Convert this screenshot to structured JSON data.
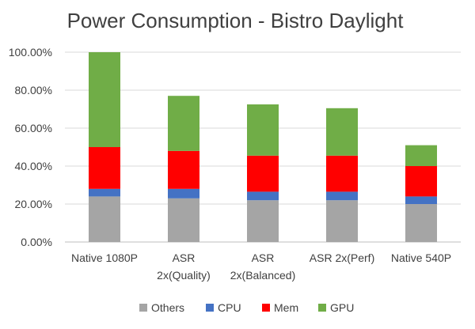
{
  "chart_data": {
    "type": "bar",
    "stacked": true,
    "title": "Power Consumption  - Bistro Daylight",
    "categories": [
      [
        "Native 1080P"
      ],
      [
        "ASR",
        "2x(Quality)"
      ],
      [
        "ASR",
        "2x(Balanced)"
      ],
      [
        "ASR 2x(Perf)"
      ],
      [
        "Native 540P"
      ]
    ],
    "series": [
      {
        "name": "Others",
        "color": "#A5A5A5",
        "values": [
          24.0,
          23.0,
          22.0,
          22.0,
          20.0
        ]
      },
      {
        "name": "CPU",
        "color": "#4472C4",
        "values": [
          4.0,
          5.0,
          4.5,
          4.5,
          4.0
        ]
      },
      {
        "name": "Mem",
        "color": "#FF0000",
        "values": [
          22.0,
          20.0,
          19.0,
          19.0,
          16.0
        ]
      },
      {
        "name": "GPU",
        "color": "#70AD47",
        "values": [
          50.0,
          29.0,
          27.0,
          25.0,
          11.0
        ]
      }
    ],
    "yticks": [
      "0.00%",
      "20.00%",
      "40.00%",
      "60.00%",
      "80.00%",
      "100.00%"
    ],
    "ylim": [
      0,
      100
    ],
    "grid": true,
    "legend_position": "bottom"
  }
}
